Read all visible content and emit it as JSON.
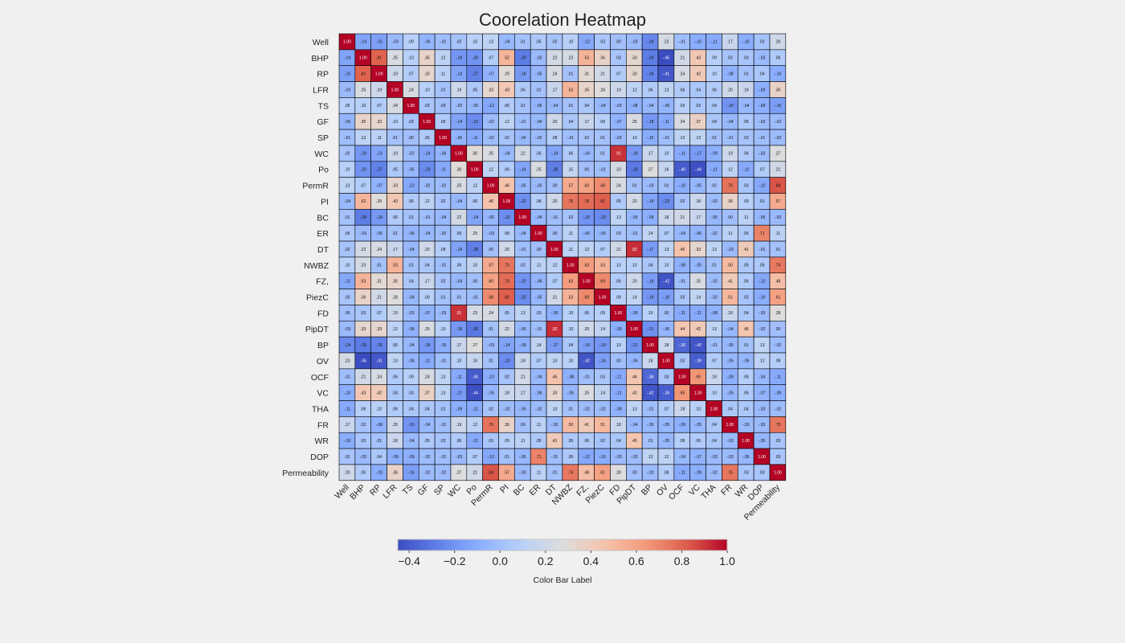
{
  "chart_data": {
    "type": "heatmap",
    "title": "Coorelation Heatmap",
    "labels": [
      "Well",
      "BHP",
      "RP",
      "LFR",
      "TS",
      "GF",
      "SP",
      "WC",
      "Po",
      "PermR",
      "PI",
      "BC",
      "ER",
      "DT",
      "NWBZ",
      "FZ,",
      "PiezC",
      "FD",
      "PipDT",
      "BP",
      "OV",
      "OCF",
      "VC",
      "THA",
      "FR",
      "WR",
      "DOP",
      "Permeability"
    ],
    "matrix": [
      [
        1.0,
        -0.14,
        -0.15,
        -0.03,
        0.09,
        -0.06,
        -0.01,
        0.02,
        0.1,
        0.13,
        -0.04,
        0.01,
        0.05,
        0.02,
        0.1,
        -0.12,
        0.03,
        0.0,
        -0.03,
        -0.24,
        0.23,
        -0.01,
        -0.1,
        -0.11,
        0.17,
        -0.1,
        0.02,
        0.2
      ],
      [
        -0.14,
        1.0,
        0.81,
        0.25,
        0.1,
        0.35,
        0.12,
        -0.19,
        -0.2,
        0.07,
        0.52,
        -0.29,
        -0.03,
        0.22,
        0.23,
        0.53,
        0.36,
        0.03,
        0.33,
        -0.29,
        -0.45,
        0.21,
        0.43,
        0.09,
        0.02,
        0.03,
        -0.03,
        0.06
      ],
      [
        -0.15,
        0.81,
        1.0,
        0.19,
        0.07,
        0.33,
        0.11,
        -0.13,
        -0.27,
        -0.07,
        0.29,
        -0.18,
        -0.05,
        0.24,
        0.01,
        0.31,
        0.21,
        0.07,
        0.33,
        -0.26,
        -0.41,
        0.24,
        0.42,
        0.1,
        -0.08,
        0.01,
        0.04,
        -0.1
      ],
      [
        -0.03,
        0.25,
        0.19,
        1.0,
        0.24,
        0.1,
        0.01,
        0.19,
        0.05,
        0.33,
        0.43,
        0.06,
        0.01,
        0.17,
        0.53,
        0.35,
        0.28,
        0.19,
        0.12,
        0.06,
        0.13,
        0.06,
        0.04,
        0.06,
        0.2,
        0.18,
        -0.09,
        0.36
      ],
      [
        0.09,
        0.1,
        0.07,
        0.24,
        1.0,
        0.03,
        0.0,
        -0.02,
        -0.05,
        -0.12,
        0.06,
        0.01,
        -0.06,
        -0.04,
        0.01,
        0.04,
        -0.04,
        -0.03,
        -0.08,
        -0.04,
        -0.06,
        0.09,
        0.03,
        0.04,
        -0.2,
        -0.04,
        -0.09,
        -0.16
      ],
      [
        -0.06,
        0.35,
        0.33,
        0.1,
        0.03,
        1.0,
        0.06,
        -0.14,
        -0.23,
        -0.02,
        0.12,
        -0.01,
        -0.04,
        0.2,
        0.04,
        0.17,
        0.09,
        -0.07,
        0.25,
        -0.18,
        -0.11,
        0.24,
        0.37,
        0.04,
        -0.04,
        0.05,
        -0.02,
        -0.02
      ],
      [
        -0.01,
        0.12,
        0.11,
        0.01,
        0.0,
        0.06,
        1.0,
        -0.06,
        -0.11,
        -0.02,
        0.02,
        -0.04,
        -0.02,
        0.08,
        -0.01,
        0.02,
        0.01,
        -0.03,
        0.1,
        -0.1,
        -0.01,
        0.13,
        0.13,
        0.01,
        -0.01,
        0.02,
        -0.01,
        -0.02
      ],
      [
        0.02,
        -0.19,
        -0.13,
        0.19,
        -0.02,
        -0.14,
        -0.06,
        1.0,
        0.3,
        0.25,
        -0.04,
        0.22,
        0.05,
        -0.14,
        0.06,
        -0.04,
        0.01,
        0.91,
        -0.18,
        0.17,
        0.1,
        -0.11,
        -0.17,
        -0.09,
        0.19,
        0.06,
        -0.03,
        0.27
      ],
      [
        0.1,
        -0.2,
        -0.27,
        0.05,
        -0.05,
        -0.23,
        -0.11,
        0.3,
        1.0,
        0.12,
        0.06,
        -0.14,
        0.25,
        -0.28,
        0.15,
        -0.0,
        -0.01,
        0.23,
        -0.3,
        0.27,
        0.16,
        -0.4,
        -0.44,
        -0.11,
        0.12,
        -0.11,
        0.07,
        0.21
      ],
      [
        0.13,
        0.07,
        -0.07,
        0.33,
        -0.12,
        -0.02,
        -0.02,
        0.25,
        0.12,
        1.0,
        0.46,
        -0.05,
        -0.03,
        -0.0,
        0.57,
        0.6,
        0.68,
        0.24,
        0.01,
        -0.03,
        0.01,
        -0.1,
        -0.05,
        0.02,
        0.76,
        0.03,
        -0.12,
        0.84
      ],
      [
        -0.04,
        0.52,
        0.29,
        0.43,
        0.06,
        0.12,
        0.02,
        -0.04,
        0.06,
        0.46,
        1.0,
        -0.22,
        0.08,
        0.2,
        0.75,
        0.78,
        0.82,
        0.05,
        0.22,
        -0.14,
        -0.23,
        0.02,
        0.18,
        -0.02,
        0.36,
        0.09,
        0.01,
        0.57
      ],
      [
        0.01,
        -0.29,
        -0.18,
        0.06,
        0.01,
        -0.01,
        -0.04,
        0.22,
        -0.14,
        -0.05,
        -0.22,
        1.0,
        -0.04,
        -0.01,
        0.02,
        -0.2,
        -0.23,
        0.13,
        -0.05,
        -0.09,
        0.18,
        0.21,
        0.17,
        -0.05,
        -0.0,
        0.11,
        -0.05,
        -0.03
      ],
      [
        0.05,
        -0.03,
        -0.05,
        0.01,
        -0.06,
        -0.04,
        -0.02,
        0.05,
        0.25,
        -0.03,
        0.08,
        -0.04,
        1.0,
        0.0,
        0.11,
        -0.06,
        -0.05,
        0.03,
        -0.01,
        0.14,
        0.07,
        -0.04,
        -0.06,
        -0.02,
        0.11,
        0.05,
        0.71,
        0.11
      ],
      [
        0.02,
        0.22,
        0.24,
        0.17,
        -0.04,
        0.2,
        0.08,
        -0.14,
        -0.28,
        -0.0,
        0.2,
        -0.01,
        0.0,
        1.0,
        0.11,
        0.12,
        0.07,
        0.21,
        0.92,
        -0.17,
        0.13,
        0.46,
        0.33,
        0.13,
        -0.03,
        0.41,
        -0.01,
        0.01
      ],
      [
        0.1,
        0.23,
        0.01,
        0.53,
        0.01,
        0.04,
        -0.01,
        0.06,
        0.15,
        0.57,
        0.75,
        0.02,
        0.11,
        0.12,
        1.0,
        0.63,
        0.53,
        0.1,
        0.1,
        0.04,
        0.1,
        -0.08,
        -0.05,
        0.01,
        0.5,
        0.05,
        0.05,
        0.74
      ],
      [
        -0.12,
        0.53,
        0.31,
        0.35,
        0.04,
        0.17,
        0.02,
        -0.04,
        -0.0,
        0.6,
        0.78,
        -0.2,
        -0.06,
        0.07,
        0.63,
        1.0,
        0.69,
        0.06,
        0.2,
        -0.16,
        -0.42,
        -0.01,
        0.25,
        -0.02,
        0.41,
        0.06,
        -0.12,
        0.48
      ],
      [
        0.03,
        0.36,
        0.21,
        0.28,
        -0.04,
        0.09,
        0.01,
        0.01,
        -0.01,
        0.68,
        0.82,
        -0.23,
        -0.05,
        0.21,
        0.53,
        0.69,
        1.0,
        0.09,
        0.14,
        -0.19,
        -0.16,
        0.03,
        0.14,
        -0.02,
        0.51,
        0.02,
        -0.1,
        0.61
      ],
      [
        0.0,
        0.03,
        0.07,
        0.19,
        -0.03,
        -0.07,
        -0.03,
        0.91,
        0.23,
        0.24,
        0.05,
        0.13,
        0.03,
        -0.09,
        0.1,
        0.06,
        0.09,
        1.0,
        -0.09,
        0.1,
        -0.0,
        -0.11,
        -0.11,
        -0.08,
        0.18,
        0.04,
        -0.03,
        0.28
      ],
      [
        -0.03,
        0.33,
        0.33,
        0.12,
        -0.08,
        0.25,
        0.1,
        -0.18,
        -0.3,
        0.01,
        0.22,
        -0.05,
        -0.01,
        0.92,
        0.1,
        0.2,
        0.14,
        -0.09,
        1.0,
        -0.21,
        -0.06,
        0.44,
        0.42,
        0.13,
        -0.04,
        0.45,
        -0.02,
        0.0
      ],
      [
        -0.24,
        -0.29,
        -0.26,
        0.06,
        -0.04,
        -0.18,
        -0.1,
        0.17,
        0.27,
        -0.03,
        -0.14,
        -0.09,
        0.14,
        -0.17,
        0.04,
        -0.16,
        -0.19,
        0.1,
        -0.21,
        1.0,
        0.18,
        -0.36,
        -0.42,
        -0.01,
        -0.05,
        0.01,
        0.13,
        -0.02
      ],
      [
        0.23,
        -0.45,
        -0.41,
        0.13,
        -0.06,
        -0.11,
        -0.01,
        0.1,
        0.16,
        0.01,
        -0.23,
        0.18,
        0.07,
        0.13,
        0.1,
        -0.42,
        -0.16,
        -0.0,
        -0.06,
        0.18,
        1.0,
        0.03,
        -0.39,
        0.07,
        -0.05,
        -0.05,
        0.12,
        0.08
      ],
      [
        -0.01,
        0.21,
        0.24,
        0.06,
        0.09,
        0.24,
        0.13,
        -0.11,
        -0.4,
        -0.1,
        0.02,
        0.21,
        -0.04,
        0.46,
        -0.08,
        -0.01,
        0.03,
        -0.11,
        0.44,
        -0.36,
        0.03,
        1.0,
        0.65,
        0.18,
        -0.09,
        0.08,
        -0.04,
        -0.11
      ],
      [
        -0.1,
        0.43,
        0.42,
        0.04,
        0.03,
        0.37,
        0.13,
        -0.17,
        -0.44,
        -0.05,
        0.18,
        0.17,
        -0.06,
        0.33,
        -0.05,
        0.25,
        0.14,
        -0.11,
        0.42,
        -0.42,
        -0.39,
        0.65,
        1.0,
        0.1,
        -0.05,
        0.06,
        -0.07,
        -0.09
      ],
      [
        -0.11,
        0.09,
        0.1,
        0.06,
        0.04,
        0.04,
        0.01,
        -0.09,
        -0.11,
        0.02,
        -0.02,
        -0.05,
        -0.02,
        0.13,
        0.01,
        -0.02,
        -0.02,
        -0.08,
        0.13,
        -0.01,
        0.07,
        0.18,
        0.1,
        1.0,
        0.04,
        0.04,
        -0.03,
        -0.02
      ],
      [
        0.17,
        0.02,
        -0.08,
        0.2,
        -0.2,
        -0.04,
        -0.01,
        0.19,
        0.12,
        0.76,
        0.36,
        -0.0,
        0.11,
        -0.03,
        0.5,
        0.41,
        0.51,
        0.18,
        -0.04,
        -0.05,
        -0.05,
        -0.09,
        -0.05,
        0.04,
        1.0,
        -0.03,
        -0.03,
        0.75
      ],
      [
        -0.1,
        0.03,
        0.01,
        0.18,
        -0.04,
        0.05,
        0.02,
        0.06,
        -0.11,
        0.03,
        0.09,
        0.11,
        0.05,
        0.41,
        0.05,
        0.06,
        0.02,
        0.04,
        0.45,
        0.01,
        -0.05,
        0.08,
        0.06,
        0.04,
        -0.03,
        1.0,
        -0.05,
        0.03
      ],
      [
        0.02,
        -0.03,
        0.04,
        -0.09,
        -0.09,
        -0.02,
        -0.01,
        -0.03,
        0.07,
        -0.12,
        0.01,
        -0.05,
        0.71,
        -0.01,
        0.05,
        -0.12,
        -0.1,
        -0.03,
        -0.02,
        0.13,
        0.12,
        -0.04,
        -0.07,
        -0.03,
        -0.03,
        -0.05,
        1.0,
        0.03
      ],
      [
        0.2,
        0.06,
        -0.1,
        0.36,
        -0.16,
        -0.02,
        -0.02,
        0.27,
        0.21,
        0.84,
        0.57,
        -0.03,
        0.11,
        0.01,
        0.74,
        0.48,
        0.61,
        0.28,
        0.0,
        -0.02,
        0.08,
        -0.11,
        -0.09,
        -0.02,
        0.75,
        0.03,
        0.03,
        1.0
      ]
    ],
    "vmin": -0.45,
    "vmax": 1.0,
    "colormap": "coolwarm",
    "colorbar": {
      "ticks": [
        -0.4,
        -0.2,
        0.0,
        0.2,
        0.4,
        0.6,
        0.8,
        1.0
      ],
      "tick_labels": [
        "−0.4",
        "−0.2",
        "0.0",
        "0.2",
        "0.4",
        "0.6",
        "0.8",
        "1.0"
      ],
      "label": "Color Bar Label",
      "orientation": "horizontal"
    },
    "annotations": true,
    "annotation_format": "2 decimals, no leading zero"
  }
}
